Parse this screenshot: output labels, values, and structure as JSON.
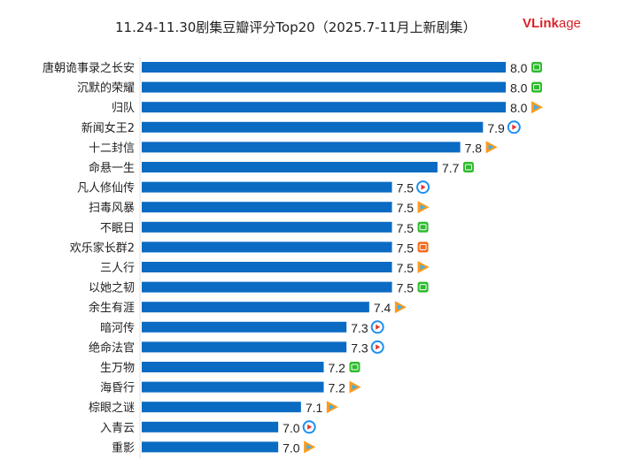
{
  "chart_data": {
    "type": "bar",
    "orientation": "horizontal",
    "title": "11.24-11.30剧集豆瓣评分Top20（2025.7-11月上新剧集）",
    "xlim": [
      6.4,
      8.0
    ],
    "grid": false,
    "bar_color": "#0b6bc3",
    "categories": [
      "唐朝诡事录之长安",
      "沉默的荣耀",
      "归队",
      "新闻女王2",
      "十二封信",
      "命悬一生",
      "凡人修仙传",
      "扫毒风暴",
      "不眠日",
      "欢乐家长群2",
      "三人行",
      "以她之韧",
      "余生有涯",
      "暗河传",
      "绝命法官",
      "生万物",
      "海昏行",
      "棕眼之谜",
      "入青云",
      "重影"
    ],
    "values": [
      8.0,
      8.0,
      8.0,
      7.9,
      7.8,
      7.7,
      7.5,
      7.5,
      7.5,
      7.5,
      7.5,
      7.5,
      7.4,
      7.3,
      7.3,
      7.2,
      7.2,
      7.1,
      7.0,
      7.0
    ],
    "labels": [
      "8.0",
      "8.0",
      "8.0",
      "7.9",
      "7.8",
      "7.7",
      "7.5",
      "7.5",
      "7.5",
      "7.5",
      "7.5",
      "7.5",
      "7.4",
      "7.3",
      "7.3",
      "7.2",
      "7.2",
      "7.1",
      "7.0",
      "7.0"
    ],
    "platforms": [
      "iqiyi",
      "iqiyi",
      "tencent",
      "youku",
      "tencent",
      "iqiyi",
      "youku",
      "tencent",
      "iqiyi",
      "mango",
      "tencent",
      "iqiyi",
      "tencent",
      "youku",
      "youku",
      "iqiyi",
      "tencent",
      "tencent",
      "youku",
      "tencent"
    ]
  },
  "logo": {
    "text": "VLinkage",
    "part1": "VL",
    "part2": "ink",
    "part3": "age"
  },
  "platform_colors": {
    "iqiyi": "#2dbb2d",
    "tencent": "#ff9a1a",
    "youku": "#1d8ff0",
    "mango": "#f26b1d"
  }
}
